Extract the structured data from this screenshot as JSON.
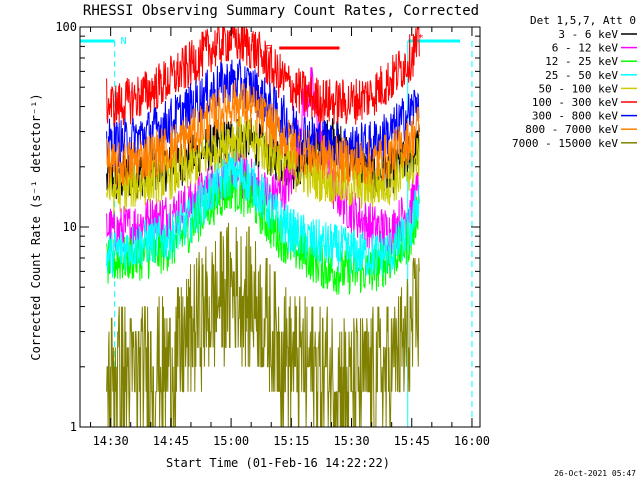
{
  "chart_data": {
    "type": "line",
    "title": "RHESSI Observing Summary Count Rates, Corrected",
    "xlabel": "Start Time (01-Feb-16 14:22:22)",
    "ylabel": "Corrected Count Rate (s⁻¹ detector⁻¹)",
    "x_ticks": [
      "14:30",
      "14:45",
      "15:00",
      "15:15",
      "15:30",
      "15:45",
      "16:00"
    ],
    "y_ticks": [
      "1",
      "10",
      "100"
    ],
    "x_range": [
      "14:22:22",
      "16:02:00"
    ],
    "y_range": [
      1,
      100
    ],
    "y_scale": "log",
    "timestamp": "26-Oct-2021 05:47",
    "legend": {
      "header": "Det 1,5,7, Att 0",
      "placement": "right"
    },
    "annotations": {
      "night_left": "N",
      "flare": "F",
      "saa_right": "L*",
      "flare_interval": [
        "15:12",
        "15:27"
      ],
      "night_intervals": [
        [
          "14:22:22",
          "14:31"
        ],
        [
          "15:44",
          "16:00"
        ]
      ]
    },
    "series": [
      {
        "name": "3 - 6 keV",
        "color": "#000000",
        "x": [
          "14:29",
          "14:31",
          "14:35",
          "14:40",
          "14:45",
          "14:50",
          "14:55",
          "15:00",
          "15:05",
          "15:10",
          "15:15",
          "15:20",
          "15:25",
          "15:30",
          "15:35",
          "15:40",
          "15:45",
          "15:47"
        ],
        "y": [
          17,
          17,
          18,
          19,
          20,
          22,
          25,
          28,
          27,
          23,
          20,
          22,
          28,
          22,
          18,
          19,
          23,
          26
        ]
      },
      {
        "name": "6 - 12 keV",
        "color": "#ff00ff",
        "x": [
          "14:29",
          "14:31",
          "14:35",
          "14:40",
          "14:45",
          "14:50",
          "14:55",
          "15:00",
          "15:05",
          "15:10",
          "15:15",
          "15:18",
          "15:20",
          "15:22",
          "15:25",
          "15:30",
          "15:35",
          "15:40",
          "15:45",
          "15:47"
        ],
        "y": [
          10,
          9.5,
          10,
          11,
          11.5,
          13,
          16,
          19,
          17,
          14,
          17,
          40,
          50,
          30,
          16,
          12,
          10,
          9.5,
          13,
          16
        ]
      },
      {
        "name": "12 - 25 keV",
        "color": "#00ff00",
        "x": [
          "14:29",
          "14:31",
          "14:35",
          "14:40",
          "14:45",
          "14:50",
          "14:55",
          "15:00",
          "15:05",
          "15:10",
          "15:15",
          "15:20",
          "15:25",
          "15:30",
          "15:35",
          "15:40",
          "15:45",
          "15:47"
        ],
        "y": [
          6.5,
          6.8,
          7,
          7.2,
          8,
          10,
          13,
          16,
          14,
          10,
          8,
          7,
          6,
          6,
          6,
          7,
          9,
          14
        ]
      },
      {
        "name": "25 - 50 keV",
        "color": "#00ffff",
        "x": [
          "14:29",
          "14:31",
          "14:35",
          "14:40",
          "14:45",
          "14:50",
          "14:55",
          "15:00",
          "15:05",
          "15:10",
          "15:15",
          "15:20",
          "15:25",
          "15:30",
          "15:35",
          "15:40",
          "15:45",
          "15:47"
        ],
        "y": [
          7,
          7.5,
          8,
          8.5,
          9,
          11,
          15,
          19,
          17,
          12,
          9.5,
          8.5,
          8,
          7.5,
          7.2,
          7.5,
          10,
          15
        ]
      },
      {
        "name": "50 - 100 keV",
        "color": "#cccc00",
        "x": [
          "14:29",
          "14:31",
          "14:35",
          "14:40",
          "14:45",
          "14:50",
          "14:55",
          "15:00",
          "15:05",
          "15:10",
          "15:15",
          "15:20",
          "15:25",
          "15:30",
          "15:35",
          "15:40",
          "15:45",
          "15:47"
        ],
        "y": [
          16,
          15,
          16,
          17,
          18,
          20,
          24,
          28,
          27,
          23,
          20,
          18,
          17,
          16,
          16,
          17,
          20,
          23
        ]
      },
      {
        "name": "100 - 300 keV",
        "color": "#ff0000",
        "x": [
          "14:29",
          "14:31",
          "14:35",
          "14:40",
          "14:45",
          "14:50",
          "14:55",
          "15:00",
          "15:05",
          "15:10",
          "15:15",
          "15:20",
          "15:25",
          "15:30",
          "15:35",
          "15:40",
          "15:45",
          "15:47"
        ],
        "y": [
          42,
          40,
          43,
          48,
          55,
          65,
          78,
          88,
          80,
          62,
          50,
          44,
          42,
          42,
          46,
          55,
          72,
          85
        ]
      },
      {
        "name": "300 - 800 keV",
        "color": "#0000ff",
        "x": [
          "14:29",
          "14:31",
          "14:35",
          "14:40",
          "14:45",
          "14:50",
          "14:55",
          "15:00",
          "15:05",
          "15:10",
          "15:15",
          "15:20",
          "15:25",
          "15:30",
          "15:35",
          "15:40",
          "15:45",
          "15:47"
        ],
        "y": [
          27,
          26,
          27,
          30,
          34,
          40,
          48,
          54,
          50,
          40,
          32,
          28,
          26,
          25,
          26,
          30,
          38,
          45
        ]
      },
      {
        "name": "800 - 7000 keV",
        "color": "#ff8000",
        "x": [
          "14:29",
          "14:31",
          "14:35",
          "14:40",
          "14:45",
          "14:50",
          "14:55",
          "15:00",
          "15:05",
          "15:10",
          "15:15",
          "15:20",
          "15:25",
          "15:30",
          "15:35",
          "15:40",
          "15:45",
          "15:47"
        ],
        "y": [
          21,
          20,
          21,
          23,
          25,
          29,
          35,
          42,
          40,
          32,
          26,
          23,
          22,
          21,
          21,
          23,
          28,
          33
        ]
      },
      {
        "name": "7000 - 15000 keV",
        "color": "#808000",
        "x": [
          "14:29",
          "14:31",
          "14:35",
          "14:40",
          "14:45",
          "14:50",
          "14:55",
          "15:00",
          "15:05",
          "15:10",
          "15:15",
          "15:20",
          "15:25",
          "15:30",
          "15:35",
          "15:40",
          "15:45",
          "15:47"
        ],
        "y": [
          1.5,
          2,
          1.8,
          2,
          2,
          3,
          4,
          5,
          4.5,
          3,
          2.2,
          2,
          1.8,
          1.6,
          1.8,
          2,
          3,
          4
        ]
      }
    ]
  }
}
